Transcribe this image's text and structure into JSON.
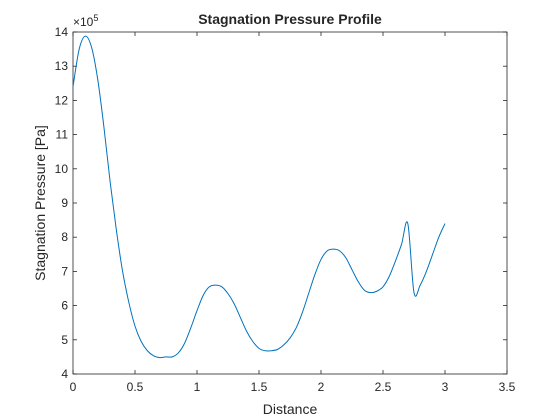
{
  "chart_data": {
    "type": "line",
    "title": "Stagnation Pressure Profile",
    "xlabel": "Distance",
    "ylabel": "Stagnation Pressure [Pa]",
    "y_exponent_label": "×10",
    "y_exponent_power": "5",
    "xlim": [
      0,
      3.5
    ],
    "ylim": [
      4,
      14
    ],
    "x_ticks": [
      "0",
      "0.5",
      "1",
      "1.5",
      "2",
      "2.5",
      "3",
      "3.5"
    ],
    "y_ticks": [
      "4",
      "5",
      "6",
      "7",
      "8",
      "9",
      "10",
      "11",
      "12",
      "13",
      "14"
    ],
    "grid": false,
    "color": "#0072BD",
    "series": [
      {
        "x": [
          0,
          0.05,
          0.1,
          0.15,
          0.2,
          0.25,
          0.3,
          0.35,
          0.4,
          0.45,
          0.5,
          0.55,
          0.6,
          0.65,
          0.7,
          0.75,
          0.8,
          0.85,
          0.9,
          0.95,
          1.0,
          1.05,
          1.1,
          1.15,
          1.2,
          1.25,
          1.3,
          1.35,
          1.4,
          1.45,
          1.5,
          1.55,
          1.6,
          1.65,
          1.7,
          1.75,
          1.8,
          1.85,
          1.9,
          1.95,
          2.0,
          2.05,
          2.1,
          2.15,
          2.2,
          2.25,
          2.3,
          2.35,
          2.4,
          2.45,
          2.5,
          2.55,
          2.6,
          2.65,
          2.7,
          2.75,
          2.8,
          2.85,
          2.9,
          2.95,
          3.0
        ],
        "y": [
          12.4,
          13.5,
          13.88,
          13.55,
          12.6,
          11.2,
          9.6,
          8.2,
          7.0,
          6.1,
          5.4,
          4.95,
          4.68,
          4.53,
          4.48,
          4.5,
          4.5,
          4.62,
          4.9,
          5.35,
          5.85,
          6.3,
          6.55,
          6.6,
          6.55,
          6.35,
          6.05,
          5.65,
          5.25,
          4.95,
          4.75,
          4.68,
          4.68,
          4.72,
          4.85,
          5.05,
          5.35,
          5.8,
          6.35,
          6.9,
          7.35,
          7.6,
          7.65,
          7.6,
          7.4,
          7.05,
          6.7,
          6.45,
          6.38,
          6.42,
          6.55,
          6.85,
          7.3,
          7.8,
          8.4,
          6.38,
          6.6,
          7.0,
          7.5,
          8.0,
          8.4
        ]
      }
    ]
  }
}
